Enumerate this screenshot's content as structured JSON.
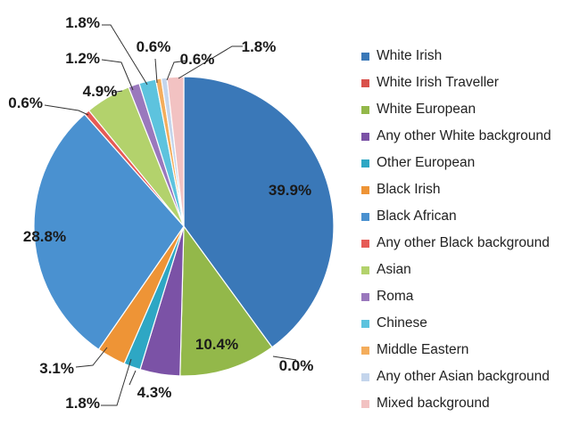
{
  "chart_data": {
    "type": "pie",
    "title": "",
    "legend_position": "right",
    "start_angle_deg": 0,
    "direction": "clockwise",
    "slices": [
      {
        "name": "White Irish",
        "value": 39.9,
        "label": "39.9%",
        "color": "#3a78b8"
      },
      {
        "name": "White Irish Traveller",
        "value": 0.0,
        "label": "0.0%",
        "color": "#d9514b"
      },
      {
        "name": "White European",
        "value": 10.4,
        "label": "10.4%",
        "color": "#93b84a"
      },
      {
        "name": "Any other White background",
        "value": 4.3,
        "label": "4.3%",
        "color": "#7b52a6"
      },
      {
        "name": "Other European",
        "value": 1.8,
        "label": "1.8%",
        "color": "#2ea7c4"
      },
      {
        "name": "Black Irish",
        "value": 3.1,
        "label": "3.1%",
        "color": "#ee9436"
      },
      {
        "name": "Black African",
        "value": 28.8,
        "label": "28.8%",
        "color": "#4a91d0"
      },
      {
        "name": "Any other Black background",
        "value": 0.6,
        "label": "0.6%",
        "color": "#e65a55"
      },
      {
        "name": "Asian",
        "value": 4.9,
        "label": "4.9%",
        "color": "#b3d26c"
      },
      {
        "name": "Roma",
        "value": 1.2,
        "label": "1.2%",
        "color": "#9a78bd"
      },
      {
        "name": "Chinese",
        "value": 1.8,
        "label": "1.8%",
        "color": "#5dc3de"
      },
      {
        "name": "Middle Eastern",
        "value": 0.6,
        "label": "0.6%",
        "color": "#f4ad5c"
      },
      {
        "name": "Any other Asian background",
        "value": 0.6,
        "label": "0.6%",
        "color": "#c4d5ec"
      },
      {
        "name": "Mixed background",
        "value": 1.8,
        "label": "1.8%",
        "color": "#f2c2c2"
      }
    ]
  }
}
